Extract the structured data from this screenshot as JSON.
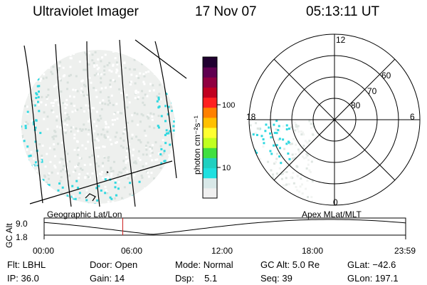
{
  "header": {
    "instrument": "Ultraviolet Imager",
    "date": "17 Nov 07",
    "time": "05:13:11 UT"
  },
  "colorbar": {
    "label": "photon cm⁻²s⁻¹",
    "ticks": [
      "100",
      "10"
    ],
    "colors": [
      "#f0f0f0",
      "#d8e8e8",
      "#20e0e0",
      "#20d0c0",
      "#40e040",
      "#c0ff20",
      "#ffff30",
      "#ffc000",
      "#ff8000",
      "#ff2020",
      "#c00020",
      "#900040",
      "#600050",
      "#200030"
    ]
  },
  "polar": {
    "mlt_labels": {
      "top": "12",
      "left": "18",
      "right": "6",
      "bottom": "0"
    },
    "lat_labels": [
      "60",
      "70",
      "80"
    ]
  },
  "orbit": {
    "left_title": "Geographic Lat/Lon",
    "right_title": "Apex MLat/MLT",
    "ylabel": "GC Alt",
    "y_ticks": [
      "9.0",
      "1.8"
    ],
    "x_ticks": [
      "00:00",
      "06:00",
      "12:00",
      "18:00",
      "23:59"
    ],
    "current_time_hours": 5.22,
    "marker_color": "#cc2020"
  },
  "status": {
    "filter": "Flt: LBHL",
    "ip": "IP: 36.0",
    "door": "Door: Open",
    "gain": "Gain: 14",
    "mode": "Mode: Normal",
    "dsp": "Dsp:    5.1",
    "gc_alt": "GC Alt: 5.0 Re",
    "seq": "Seq: 39",
    "glat": "GLat: −42.6",
    "glon": "GLon: 197.1"
  }
}
